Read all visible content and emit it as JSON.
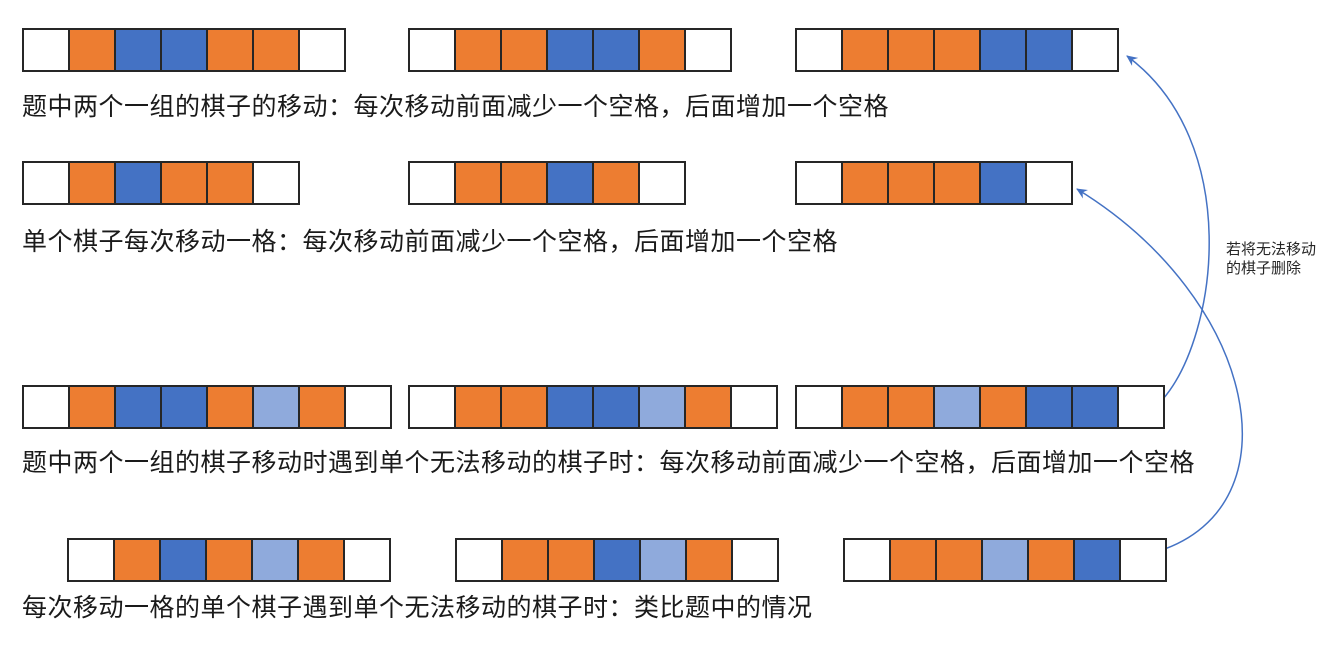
{
  "colors": {
    "white": "#FFFFFF",
    "orange": "#ED7D31",
    "blue": "#4472C4",
    "light_blue": "#8FAADC",
    "cell_border": "#262626",
    "arrow": "#4472C4"
  },
  "groups": [
    {
      "caption": "题中两个一组的棋子的移动：每次移动前面减少一个空格，后面增加一个空格",
      "strips": [
        {
          "cells": [
            "white",
            "orange",
            "blue",
            "blue",
            "orange",
            "orange",
            "white"
          ]
        },
        {
          "cells": [
            "white",
            "orange",
            "orange",
            "blue",
            "blue",
            "orange",
            "white"
          ]
        },
        {
          "cells": [
            "white",
            "orange",
            "orange",
            "orange",
            "blue",
            "blue",
            "white"
          ]
        }
      ]
    },
    {
      "caption": "单个棋子每次移动一格：每次移动前面减少一个空格，后面增加一个空格",
      "strips": [
        {
          "cells": [
            "white",
            "orange",
            "blue",
            "orange",
            "orange",
            "white"
          ]
        },
        {
          "cells": [
            "white",
            "orange",
            "orange",
            "blue",
            "orange",
            "white"
          ]
        },
        {
          "cells": [
            "white",
            "orange",
            "orange",
            "orange",
            "blue",
            "white"
          ]
        }
      ]
    },
    {
      "caption": "题中两个一组的棋子移动时遇到单个无法移动的棋子时：每次移动前面减少一个空格，后面增加一个空格",
      "strips": [
        {
          "cells": [
            "white",
            "orange",
            "blue",
            "blue",
            "orange",
            "light_blue",
            "orange",
            "white"
          ]
        },
        {
          "cells": [
            "white",
            "orange",
            "orange",
            "blue",
            "blue",
            "light_blue",
            "orange",
            "white"
          ]
        },
        {
          "cells": [
            "white",
            "orange",
            "orange",
            "light_blue",
            "orange",
            "blue",
            "blue",
            "white"
          ]
        }
      ]
    },
    {
      "caption": "每次移动一格的单个棋子遇到单个无法移动的棋子时：类比题中的情况",
      "strips": [
        {
          "cells": [
            "white",
            "orange",
            "blue",
            "orange",
            "light_blue",
            "orange",
            "white"
          ]
        },
        {
          "cells": [
            "white",
            "orange",
            "orange",
            "blue",
            "light_blue",
            "orange",
            "white"
          ]
        },
        {
          "cells": [
            "white",
            "orange",
            "orange",
            "light_blue",
            "orange",
            "blue",
            "white"
          ]
        }
      ]
    }
  ],
  "annotation": {
    "line1": "若将无法移动",
    "line2": "的棋子删除"
  }
}
